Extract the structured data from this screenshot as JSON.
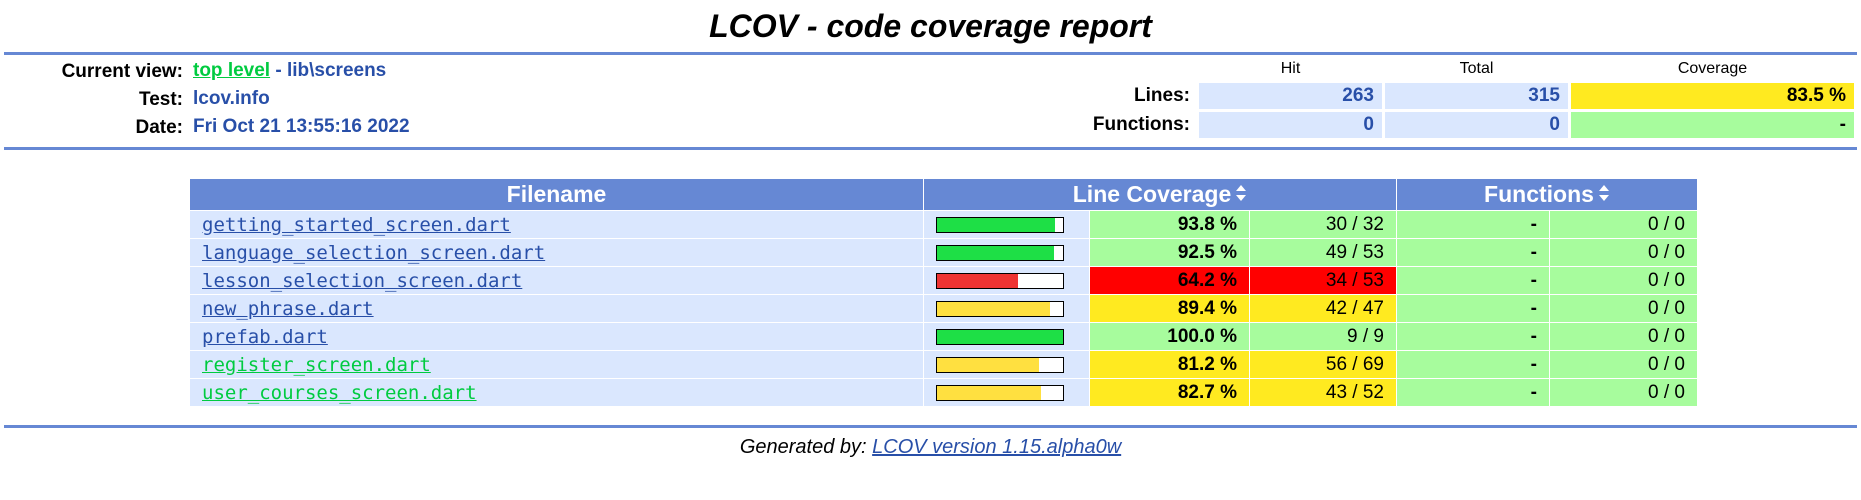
{
  "title": "LCOV - code coverage report",
  "info": {
    "current_view_label": "Current view:",
    "current_view_link": "top level",
    "current_view_sep": " - ",
    "current_view_path": "lib\\screens",
    "test_label": "Test:",
    "test_value": "lcov.info",
    "date_label": "Date:",
    "date_value": "Fri Oct 21 13:55:16 2022"
  },
  "summary": {
    "headers": {
      "hit": "Hit",
      "total": "Total",
      "coverage": "Coverage"
    },
    "lines": {
      "label": "Lines:",
      "hit": "263",
      "total": "315",
      "coverage": "83.5 %"
    },
    "functions": {
      "label": "Functions:",
      "hit": "0",
      "total": "0",
      "coverage": "-"
    }
  },
  "table": {
    "headers": {
      "filename": "Filename",
      "line_coverage": "Line Coverage",
      "functions": "Functions"
    },
    "sort_icon": "sort-arrows-icon",
    "rows": [
      {
        "file": "getting_started_screen.dart",
        "pct": "93.8 %",
        "count": "30 / 32",
        "fn_pct": "-",
        "fn_count": "0 / 0",
        "fill": 0.938,
        "level": "hi",
        "link_color": "blue"
      },
      {
        "file": "language_selection_screen.dart",
        "pct": "92.5 %",
        "count": "49 / 53",
        "fn_pct": "-",
        "fn_count": "0 / 0",
        "fill": 0.925,
        "level": "hi",
        "link_color": "blue"
      },
      {
        "file": "lesson_selection_screen.dart",
        "pct": "64.2 %",
        "count": "34 / 53",
        "fn_pct": "-",
        "fn_count": "0 / 0",
        "fill": 0.642,
        "level": "lo",
        "link_color": "blue"
      },
      {
        "file": "new_phrase.dart",
        "pct": "89.4 %",
        "count": "42 / 47",
        "fn_pct": "-",
        "fn_count": "0 / 0",
        "fill": 0.894,
        "level": "med",
        "link_color": "blue"
      },
      {
        "file": "prefab.dart",
        "pct": "100.0 %",
        "count": "9 / 9",
        "fn_pct": "-",
        "fn_count": "0 / 0",
        "fill": 1.0,
        "level": "hi",
        "link_color": "blue"
      },
      {
        "file": "register_screen.dart",
        "pct": "81.2 %",
        "count": "56 / 69",
        "fn_pct": "-",
        "fn_count": "0 / 0",
        "fill": 0.812,
        "level": "med",
        "link_color": "green"
      },
      {
        "file": "user_courses_screen.dart",
        "pct": "82.7 %",
        "count": "43 / 52",
        "fn_pct": "-",
        "fn_count": "0 / 0",
        "fill": 0.827,
        "level": "med",
        "link_color": "green"
      }
    ]
  },
  "colors": {
    "header_blue": "#6688d4",
    "cell_blue": "#dae7fe",
    "text_blue": "#284fa8",
    "link_green": "#00cb40",
    "hi": "#a7fc9d",
    "med": "#ffea20",
    "lo": "#ff0000",
    "bar_hi": "#1edf46",
    "bar_med": "#ffe040",
    "bar_lo": "#ee3333"
  },
  "footer": {
    "prefix": "Generated by: ",
    "link": "LCOV version 1.15.alpha0w"
  }
}
